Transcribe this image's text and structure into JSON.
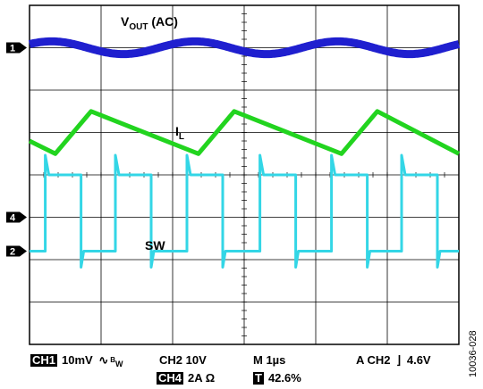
{
  "chart_data": {
    "type": "line",
    "grid": true,
    "time_base": "1µs",
    "channels": [
      {
        "id": "1",
        "label_main": "V",
        "label_sub": "OUT",
        "label_tail": " (AC)",
        "color": "#1f1fcf",
        "shape": "sine",
        "period_divisions": 2.0,
        "amplitude_divisions": 0.15
      },
      {
        "id": "",
        "label_main": "I",
        "label_sub": "L",
        "label_tail": "",
        "color": "#22d41f",
        "shape": "triangle",
        "period_divisions": 2.0,
        "amplitude_divisions": 0.5
      },
      {
        "id": "4",
        "label_main": "SW",
        "label_sub": "",
        "label_tail": "",
        "color": "#33d6e6",
        "shape": "square",
        "period_divisions": 2.0,
        "amplitude_divisions": 1.1
      }
    ],
    "markers": [
      {
        "channel": "1",
        "level_divisions": 3.0
      },
      {
        "channel": "4",
        "level_divisions": -1.0
      },
      {
        "channel": "2",
        "level_divisions": -1.8
      }
    ]
  },
  "readout": {
    "ch1_tag": "CH1",
    "ch1_value": "10mV",
    "bw_symbol": "∿",
    "bw_b": "B",
    "bw_w": "W",
    "ch2": "CH2 10V",
    "ch4_tag": "CH4",
    "ch4_value": "2A Ω",
    "timebase": "M 1µs",
    "trigger": "A  CH2",
    "trigger_symbol": "⌉",
    "trigger_level": "4.6V",
    "t_tag": "T",
    "position": "42.6%"
  },
  "figure_id": "10036-028"
}
